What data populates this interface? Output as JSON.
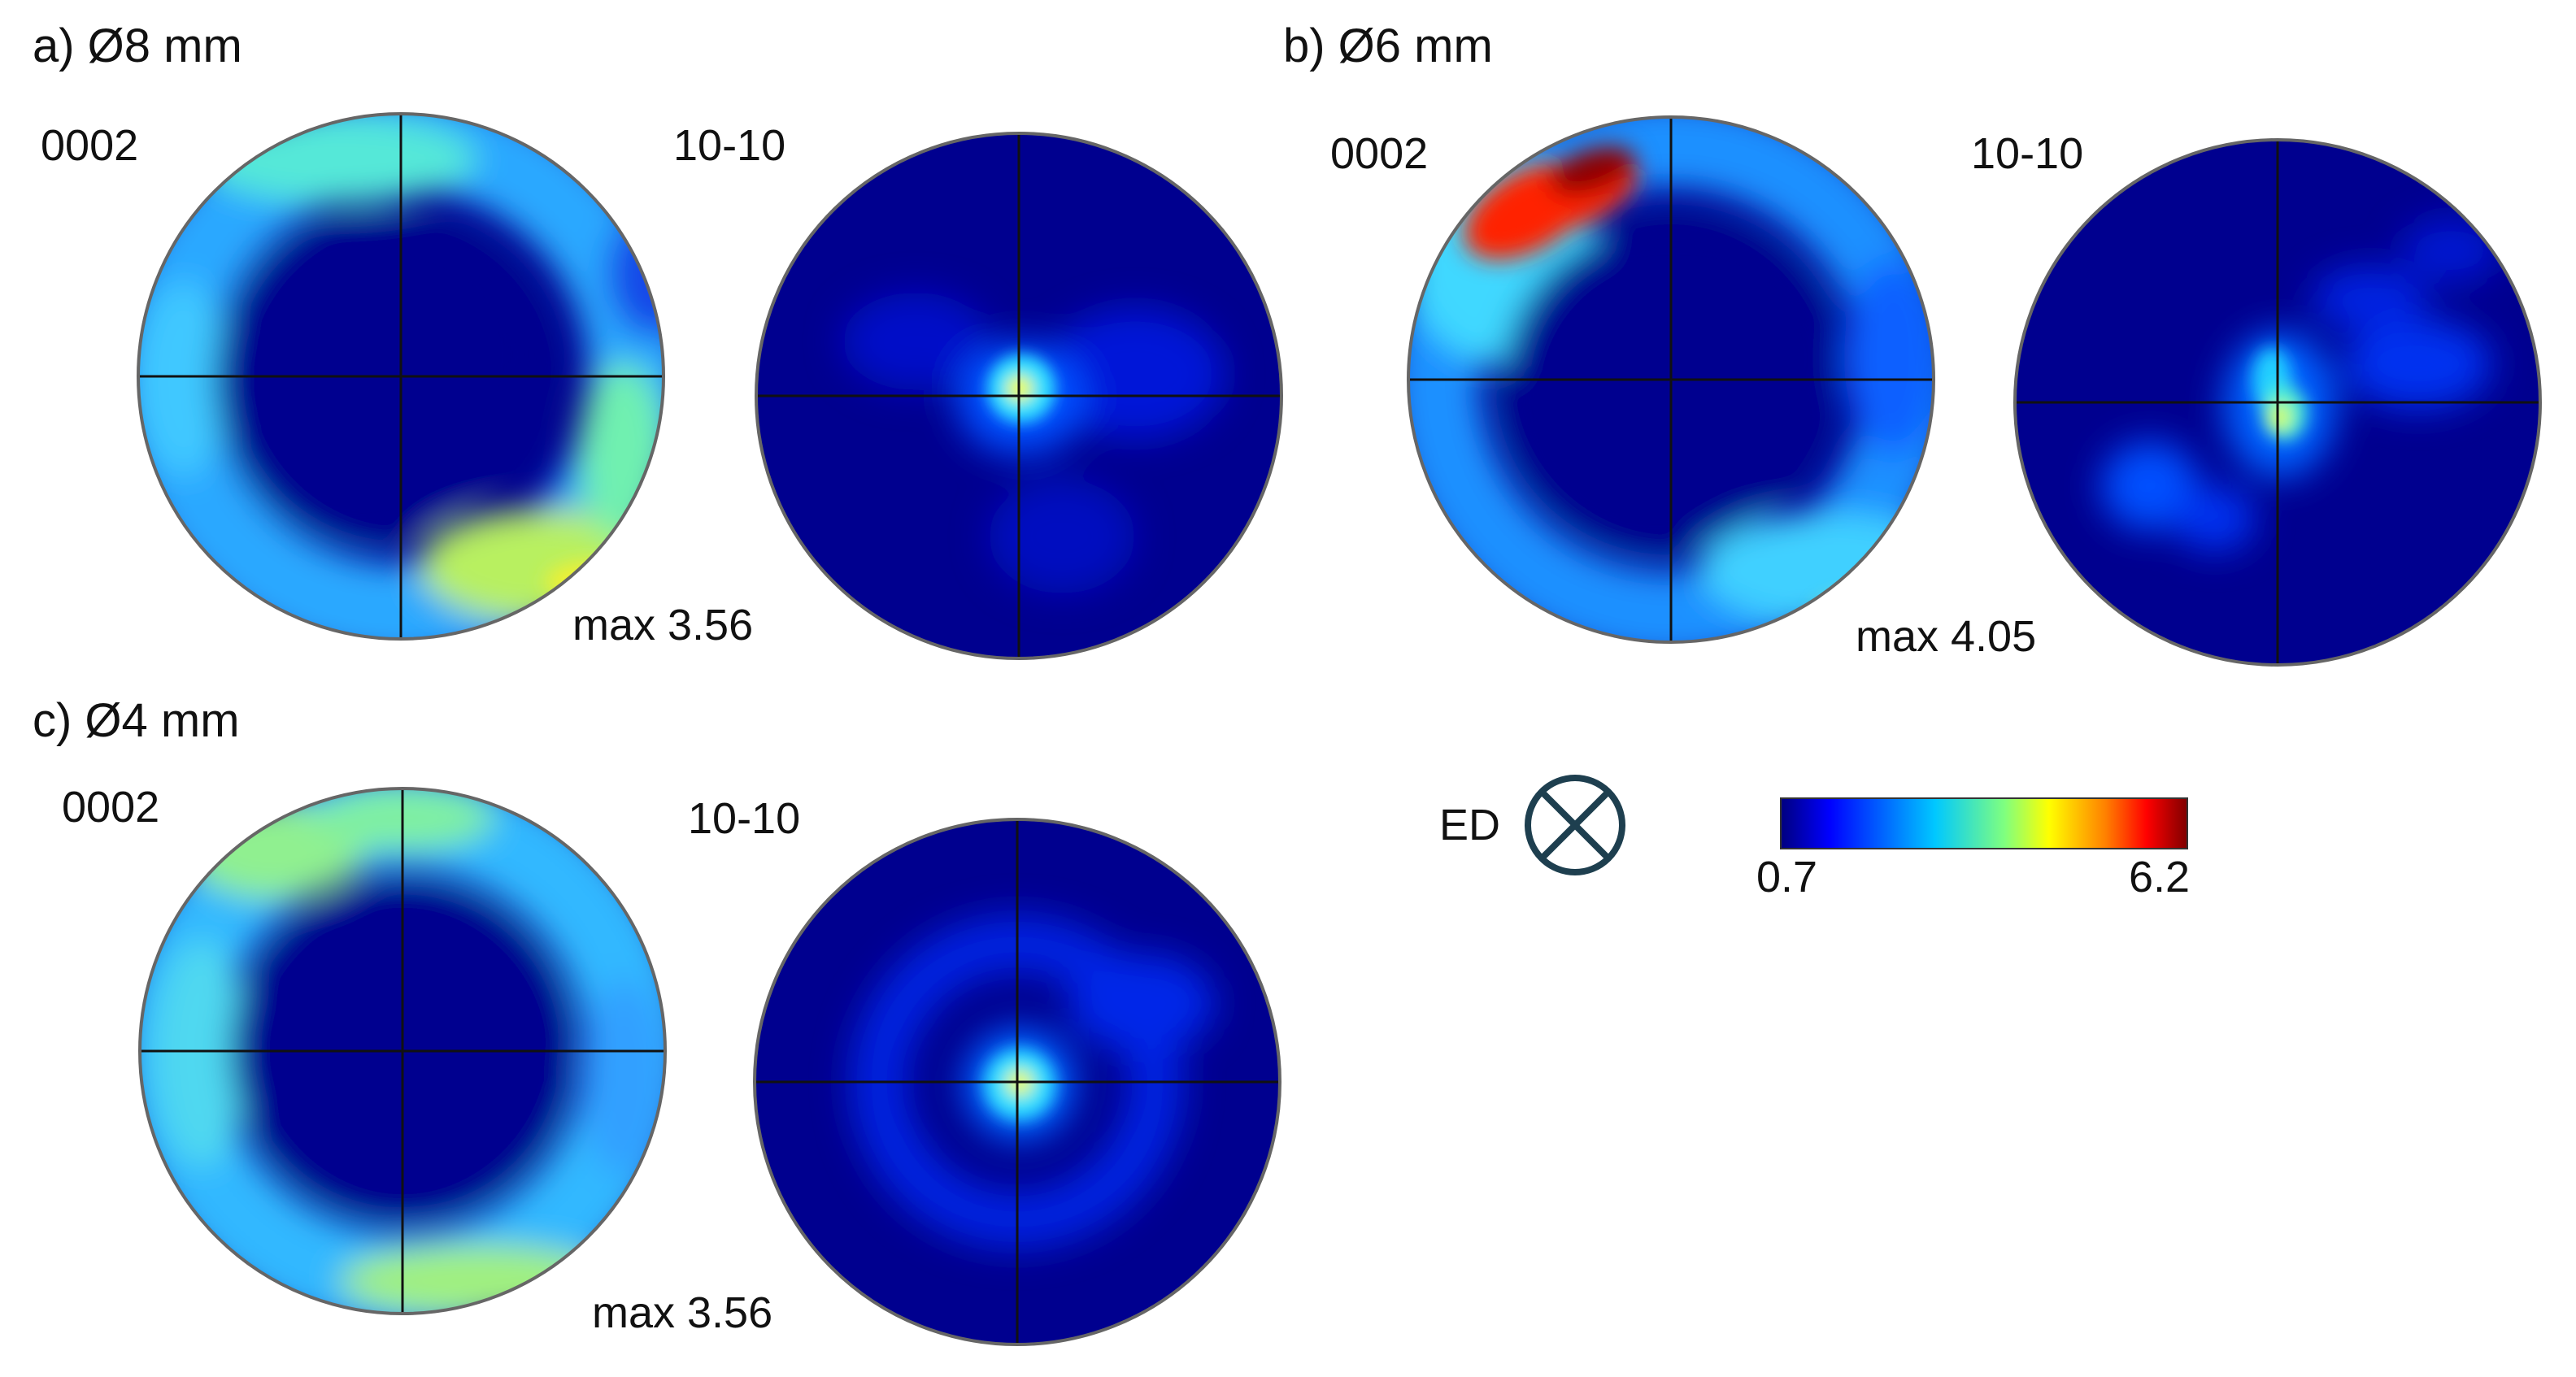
{
  "panels": [
    {
      "title": "a) Ø8 mm",
      "pole1_label": "0002",
      "pole2_label": "10-10",
      "max_text": "max  3.56"
    },
    {
      "title": "b) Ø6 mm",
      "pole1_label": "0002",
      "pole2_label": "10-10",
      "max_text": "max  4.05"
    },
    {
      "title": "c) Ø4 mm",
      "pole1_label": "0002",
      "pole2_label": "10-10",
      "max_text": "max  3.56"
    }
  ],
  "direction_label": "ED",
  "colorbar": {
    "min_label": "0.7",
    "max_label": "6.2",
    "colors": [
      "#00007f",
      "#0000ff",
      "#00c8ff",
      "#7fff7f",
      "#ffff00",
      "#ff7f00",
      "#ff0000",
      "#7f0000"
    ]
  },
  "colors": {
    "background": "#00008f",
    "outline": "#666666",
    "crosshair": "#111111",
    "ed_symbol": "#1e3f4f"
  }
}
